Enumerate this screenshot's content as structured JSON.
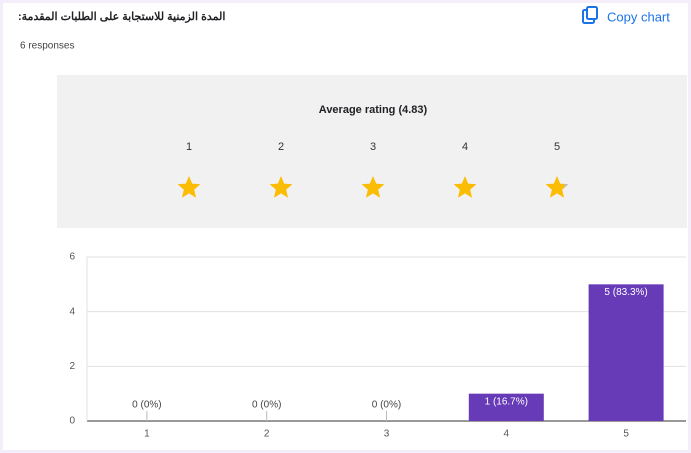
{
  "header": {
    "title": "المدة الزمنية للاستجابة على الطلبات المقدمة:",
    "responses": "6 responses",
    "copy_button": "Copy chart"
  },
  "rating": {
    "title": "Average rating (4.83)",
    "value": 4.83,
    "labels": [
      1,
      2,
      3,
      4,
      5
    ]
  },
  "chart_data": {
    "type": "bar",
    "categories": [
      "1",
      "2",
      "3",
      "4",
      "5"
    ],
    "values": [
      0,
      0,
      0,
      1,
      5
    ],
    "value_labels": [
      "0 (0%)",
      "0 (0%)",
      "0 (0%)",
      "1 (16.7%)",
      "5 (83.3%)"
    ],
    "color": "#673ab7",
    "ylim": [
      0,
      6
    ],
    "yticks": [
      0,
      2,
      4,
      6
    ],
    "grid": true
  }
}
